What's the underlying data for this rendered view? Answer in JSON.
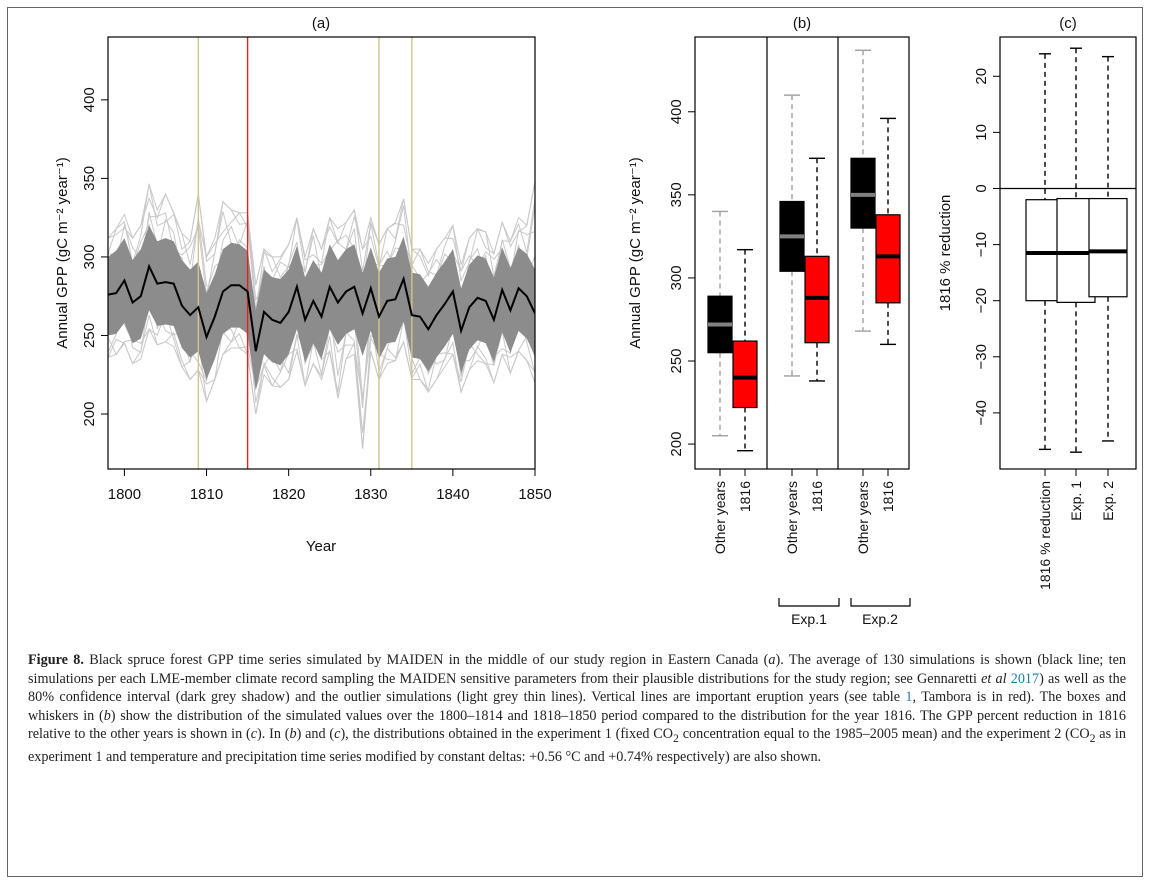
{
  "chart_data": [
    {
      "type": "line",
      "title": "(a)",
      "xlabel": "Year",
      "ylabel": "Annual GPP (gC m⁻² year⁻¹)",
      "xlim": [
        1798,
        1850
      ],
      "ylim": [
        165,
        440
      ],
      "xticks": [
        "1800",
        "1810",
        "1820",
        "1830",
        "1840",
        "1850"
      ],
      "yticks": [
        "200",
        "250",
        "300",
        "350",
        "400"
      ],
      "eruption_years": [
        1809,
        1815,
        1831,
        1835
      ],
      "eruption_colors": [
        "#cfc48a",
        "#e0241f",
        "#cfc48a",
        "#cfc48a"
      ],
      "x": [
        1798,
        1799,
        1800,
        1801,
        1802,
        1803,
        1804,
        1805,
        1806,
        1807,
        1808,
        1809,
        1810,
        1811,
        1812,
        1813,
        1814,
        1815,
        1816,
        1817,
        1818,
        1819,
        1820,
        1821,
        1822,
        1823,
        1824,
        1825,
        1826,
        1827,
        1828,
        1829,
        1830,
        1831,
        1832,
        1833,
        1834,
        1835,
        1836,
        1837,
        1838,
        1839,
        1840,
        1841,
        1842,
        1843,
        1844,
        1845,
        1846,
        1847,
        1848,
        1849,
        1850
      ],
      "series": [
        {
          "role": "mean",
          "color": "#000000",
          "values": [
            276,
            277,
            285,
            271,
            275,
            294,
            283,
            284,
            283,
            269,
            263,
            268,
            249,
            262,
            278,
            282,
            282,
            278,
            240,
            265,
            260,
            258,
            265,
            281,
            260,
            272,
            262,
            281,
            271,
            278,
            281,
            264,
            280,
            262,
            272,
            273,
            286,
            263,
            262,
            254,
            263,
            270,
            278,
            253,
            268,
            274,
            272,
            260,
            279,
            266,
            280,
            275,
            264
          ]
        },
        {
          "role": "ci80-upper",
          "color": "#8c8c8c",
          "values": [
            300,
            304,
            312,
            298,
            305,
            320,
            310,
            312,
            310,
            298,
            292,
            297,
            277,
            289,
            305,
            309,
            308,
            304,
            266,
            292,
            287,
            286,
            292,
            307,
            287,
            298,
            290,
            308,
            298,
            305,
            308,
            290,
            306,
            290,
            299,
            300,
            313,
            290,
            289,
            281,
            290,
            297,
            305,
            280,
            295,
            301,
            299,
            287,
            306,
            293,
            306,
            302,
            292
          ]
        },
        {
          "role": "ci80-lower",
          "color": "#8c8c8c",
          "values": [
            250,
            251,
            258,
            245,
            248,
            266,
            256,
            257,
            256,
            242,
            236,
            240,
            222,
            235,
            251,
            255,
            255,
            251,
            215,
            238,
            233,
            231,
            238,
            254,
            233,
            245,
            235,
            254,
            244,
            251,
            254,
            237,
            253,
            235,
            245,
            246,
            259,
            236,
            235,
            227,
            236,
            243,
            251,
            226,
            241,
            247,
            245,
            233,
            252,
            239,
            253,
            248,
            237
          ]
        },
        {
          "role": "outlier-max",
          "color": "#c8c8c8",
          "values": [
            312,
            318,
            327,
            312,
            320,
            346,
            330,
            340,
            328,
            315,
            310,
            340,
            300,
            312,
            335,
            330,
            328,
            328,
            282,
            305,
            300,
            300,
            308,
            325,
            300,
            318,
            305,
            325,
            318,
            322,
            330,
            305,
            325,
            308,
            318,
            322,
            337,
            305,
            305,
            296,
            305,
            312,
            320,
            295,
            312,
            318,
            316,
            302,
            322,
            310,
            325,
            320,
            348
          ]
        },
        {
          "role": "outlier-min",
          "color": "#c8c8c8",
          "values": [
            236,
            238,
            245,
            232,
            235,
            254,
            244,
            246,
            243,
            230,
            222,
            228,
            208,
            222,
            238,
            242,
            242,
            238,
            200,
            225,
            218,
            217,
            222,
            240,
            218,
            232,
            222,
            240,
            210,
            235,
            238,
            178,
            240,
            222,
            232,
            234,
            246,
            222,
            222,
            214,
            222,
            230,
            238,
            214,
            228,
            234,
            232,
            220,
            238,
            226,
            240,
            234,
            220
          ]
        }
      ]
    },
    {
      "type": "box",
      "title": "(b)",
      "ylabel": "Annual GPP (gC m⁻² year⁻¹)",
      "ylim": [
        185,
        445
      ],
      "yticks": [
        "200",
        "250",
        "300",
        "350",
        "400"
      ],
      "categories": [
        "Other years",
        "1816",
        "Other years",
        "1816",
        "Other years",
        "1816"
      ],
      "groups": [
        "Exp.1",
        "Exp.2"
      ],
      "boxes": [
        {
          "label": "Other years",
          "fill": "#000000",
          "median_color": "#808080",
          "whisker_color": "#a0a0a0",
          "min": 205,
          "q1": 255,
          "median": 272,
          "q3": 289,
          "max": 340
        },
        {
          "label": "1816",
          "fill": "#ff0000",
          "median_color": "#000000",
          "whisker_color": "#000000",
          "min": 196,
          "q1": 222,
          "median": 240,
          "q3": 262,
          "max": 317
        },
        {
          "label": "Other years",
          "fill": "#000000",
          "median_color": "#808080",
          "whisker_color": "#a0a0a0",
          "min": 241,
          "q1": 304,
          "median": 325,
          "q3": 346,
          "max": 410
        },
        {
          "label": "1816",
          "fill": "#ff0000",
          "median_color": "#000000",
          "whisker_color": "#000000",
          "min": 238,
          "q1": 261,
          "median": 288,
          "q3": 313,
          "max": 372
        },
        {
          "label": "Other years",
          "fill": "#000000",
          "median_color": "#808080",
          "whisker_color": "#a0a0a0",
          "min": 268,
          "q1": 330,
          "median": 350,
          "q3": 372,
          "max": 437
        },
        {
          "label": "1816",
          "fill": "#ff0000",
          "median_color": "#000000",
          "whisker_color": "#000000",
          "min": 260,
          "q1": 285,
          "median": 313,
          "q3": 338,
          "max": 396
        }
      ]
    },
    {
      "type": "box",
      "title": "(c)",
      "ylabel": "1816 % reduction",
      "ylim": [
        -50,
        27
      ],
      "yticks": [
        "−40",
        "−30",
        "−20",
        "−10",
        "0",
        "10",
        "20"
      ],
      "reference_line": 0,
      "categories": [
        "1816 % reduction",
        "Exp. 1",
        "Exp. 2"
      ],
      "boxes": [
        {
          "label": "1816 % reduction",
          "fill": "#ffffff",
          "median_color": "#000000",
          "min": -46.5,
          "q1": -20,
          "median": -11.5,
          "q3": -2,
          "max": 24
        },
        {
          "label": "Exp. 1",
          "fill": "#ffffff",
          "median_color": "#000000",
          "min": -47,
          "q1": -20.3,
          "median": -11.5,
          "q3": -1.8,
          "max": 25
        },
        {
          "label": "Exp. 2",
          "fill": "#ffffff",
          "median_color": "#000000",
          "min": -45,
          "q1": -19.3,
          "median": -11.2,
          "q3": -1.8,
          "max": 23.5
        }
      ]
    }
  ],
  "caption": {
    "label": "Figure 8.",
    "text_1": " Black spruce forest GPP time series simulated by MAIDEN in the middle of our study region in Eastern Canada (",
    "ital_a": "a",
    "text_2": "). The average of 130 simulations is shown (black line; ten simulations per each LME-member climate record sampling the MAIDEN sensitive parameters from their plausible distributions for the study region; see Gennaretti ",
    "etal": "et al",
    "ref_year": " 2017",
    "text_3": ") as well as the 80% confidence interval (dark grey shadow) and the outlier simulations (light grey thin lines). Vertical lines are important eruption years (see table ",
    "ref_table": "1",
    "text_4": ", Tambora is in red). The boxes and whiskers in (",
    "ital_b": "b",
    "text_5": ") show the distribution of the simulated values over the 1800–1814 and 1818–1850 period compared to the distribution for the year 1816. The GPP percent reduction in 1816 relative to the other years is shown in (",
    "ital_c": "c",
    "text_6": "). In (",
    "ital_b2": "b",
    "text_7": ") and (",
    "ital_c2": "c",
    "text_8": "), the distributions obtained in the experiment 1 (fixed CO",
    "sub_2a": "2",
    "text_9": " concentration equal to the 1985–2005 mean) and the experiment 2 (CO",
    "sub_2b": "2",
    "text_10": " as in experiment 1 and temperature and precipitation time series modified by constant deltas: +0.56 °C and +0.74% respectively) are also shown."
  }
}
